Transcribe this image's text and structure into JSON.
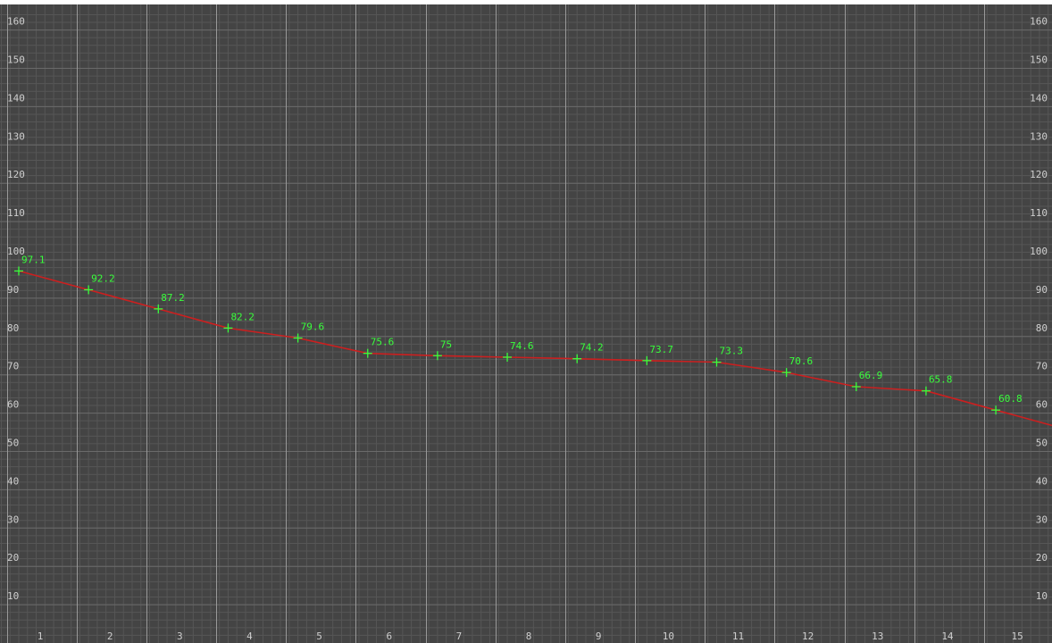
{
  "theme": {
    "background": "#444444",
    "minor_grid": "#565656",
    "major_grid": "#999999",
    "tick_text": "#cfcfcf",
    "line_color": "#cc1f1f",
    "marker_color": "#39ff3c",
    "label_color": "#39ff3c"
  },
  "chart_data": {
    "type": "line",
    "title": "",
    "xlabel": "",
    "ylabel": "",
    "categories": [
      "1",
      "2",
      "3",
      "4",
      "5",
      "6",
      "7",
      "8",
      "9",
      "10",
      "11",
      "12",
      "13",
      "14",
      "15"
    ],
    "series": [
      {
        "values": [
          97.1,
          92.2,
          87.2,
          82.2,
          79.6,
          75.6,
          75,
          74.6,
          74.2,
          73.7,
          73.3,
          70.6,
          66.9,
          65.8,
          60.8
        ],
        "labels": [
          "97.1",
          "92.2",
          "87.2",
          "82.2",
          "79.6",
          "75.6",
          "75",
          "74.6",
          "74.2",
          "73.7",
          "73.3",
          "70.6",
          "66.9",
          "65.8",
          "60.8"
        ]
      }
    ],
    "ylim": [
      0,
      165
    ],
    "y_ticks": [
      "10",
      "20",
      "30",
      "40",
      "50",
      "60",
      "70",
      "80",
      "90",
      "100",
      "110",
      "120",
      "130",
      "140",
      "150",
      "160"
    ],
    "y_axis_sides": [
      "left",
      "right"
    ],
    "grid": true,
    "legend": "none"
  }
}
